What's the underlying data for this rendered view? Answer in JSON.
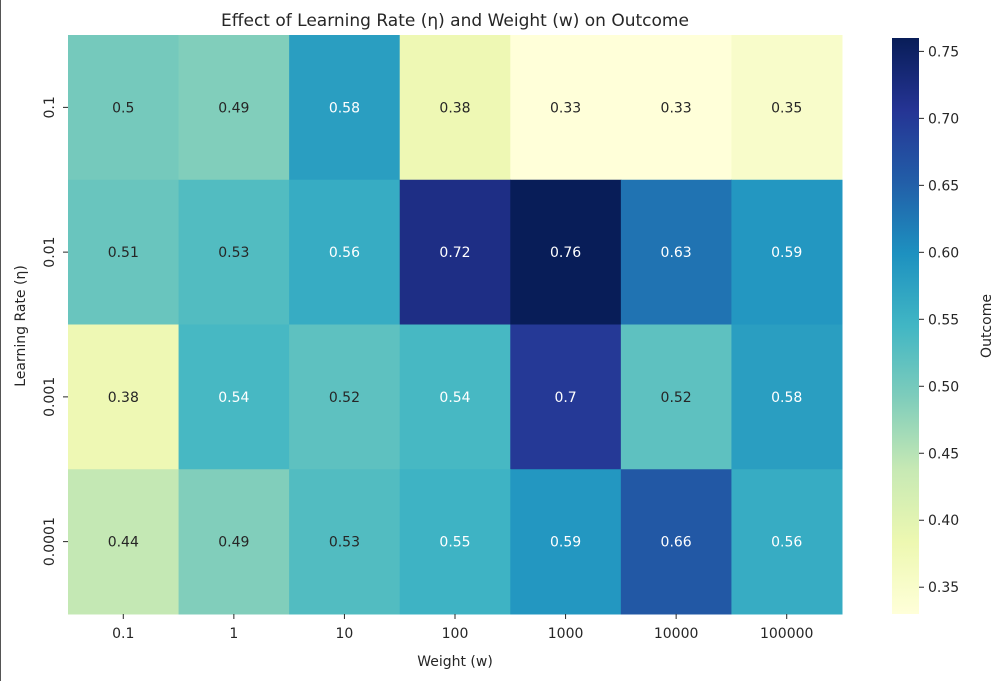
{
  "chart_data": {
    "type": "heatmap",
    "title": "Effect of Learning Rate (η) and Weight (w) on Outcome",
    "xlabel": "Weight (w)",
    "ylabel": "Learning Rate (η)",
    "x_categories": [
      "0.1",
      "1",
      "10",
      "100",
      "1000",
      "10000",
      "100000"
    ],
    "y_categories": [
      "0.1",
      "0.01",
      "0.001",
      "0.0001"
    ],
    "values": [
      [
        0.5,
        0.49,
        0.58,
        0.38,
        0.33,
        0.33,
        0.35
      ],
      [
        0.51,
        0.53,
        0.56,
        0.72,
        0.76,
        0.63,
        0.59
      ],
      [
        0.38,
        0.54,
        0.52,
        0.54,
        0.7,
        0.52,
        0.58
      ],
      [
        0.44,
        0.49,
        0.53,
        0.55,
        0.59,
        0.66,
        0.56
      ]
    ],
    "value_labels": [
      [
        "0.5",
        "0.49",
        "0.58",
        "0.38",
        "0.33",
        "0.33",
        "0.35"
      ],
      [
        "0.51",
        "0.53",
        "0.56",
        "0.72",
        "0.76",
        "0.63",
        "0.59"
      ],
      [
        "0.38",
        "0.54",
        "0.52",
        "0.54",
        "0.7",
        "0.52",
        "0.58"
      ],
      [
        "0.44",
        "0.49",
        "0.53",
        "0.55",
        "0.59",
        "0.66",
        "0.56"
      ]
    ],
    "colorbar": {
      "label": "Outcome",
      "min": 0.33,
      "max": 0.76,
      "ticks": [
        0.35,
        0.4,
        0.45,
        0.5,
        0.55,
        0.6,
        0.65,
        0.7,
        0.75
      ],
      "tick_labels": [
        "0.35",
        "0.40",
        "0.45",
        "0.50",
        "0.55",
        "0.60",
        "0.65",
        "0.70",
        "0.75"
      ]
    },
    "colormap": "YlGnBu",
    "colormap_stops": [
      "#ffffd9",
      "#edf8b1",
      "#c7e9b4",
      "#7fcdbb",
      "#41b6c4",
      "#1d91c0",
      "#225ea8",
      "#253494",
      "#081d58"
    ]
  }
}
